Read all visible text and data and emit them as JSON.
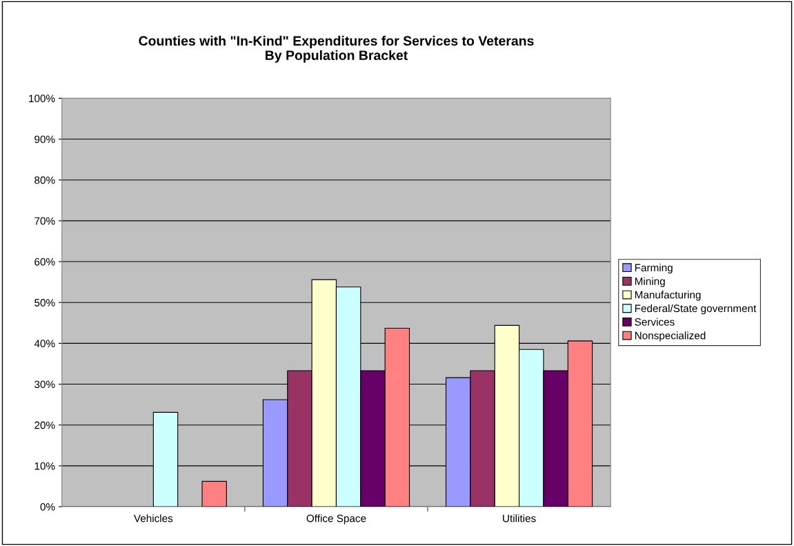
{
  "chart_data": {
    "type": "bar",
    "title": "Counties with \"In-Kind\" Expenditures for Services to Veterans\nBy Population Bracket",
    "categories": [
      "Vehicles",
      "Office Space",
      "Utilities"
    ],
    "series": [
      {
        "name": "Farming",
        "color": "#9999ff",
        "values": [
          null,
          26.2,
          31.6
        ]
      },
      {
        "name": "Mining",
        "color": "#993366",
        "values": [
          null,
          33.3,
          33.3
        ]
      },
      {
        "name": "Manufacturing",
        "color": "#ffffcc",
        "values": [
          null,
          55.6,
          44.4
        ]
      },
      {
        "name": "Federal/State government",
        "color": "#ccffff",
        "values": [
          23.1,
          53.8,
          38.5
        ]
      },
      {
        "name": "Services",
        "color": "#660066",
        "values": [
          null,
          33.3,
          33.3
        ]
      },
      {
        "name": "Nonspecialized",
        "color": "#ff8080",
        "values": [
          6.2,
          43.7,
          40.6
        ]
      }
    ],
    "ylim": [
      0,
      100
    ],
    "yticks": [
      {
        "value": 0,
        "label": "0%"
      },
      {
        "value": 10,
        "label": "10%"
      },
      {
        "value": 20,
        "label": "20%"
      },
      {
        "value": 30,
        "label": "30%"
      },
      {
        "value": 40,
        "label": "40%"
      },
      {
        "value": 50,
        "label": "50%"
      },
      {
        "value": 60,
        "label": "60%"
      },
      {
        "value": 70,
        "label": "70%"
      },
      {
        "value": 80,
        "label": "80%"
      },
      {
        "value": 90,
        "label": "90%"
      },
      {
        "value": 100,
        "label": "100%"
      }
    ],
    "grid": "y",
    "legend": "right"
  }
}
